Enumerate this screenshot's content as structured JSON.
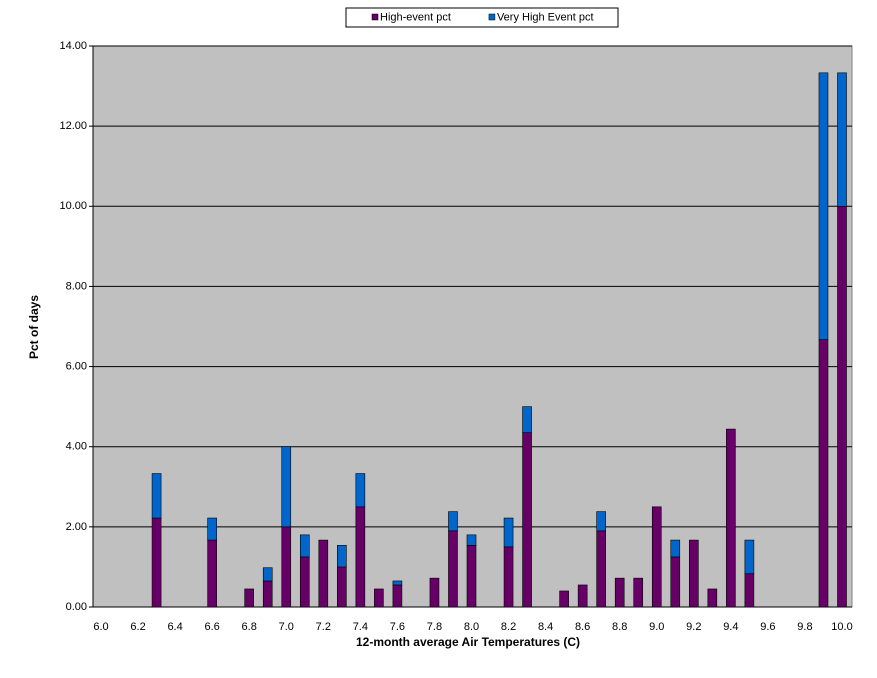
{
  "chart_data": {
    "type": "stacked_bar",
    "xlabel": "12-month average Air Temperatures (C)",
    "ylabel": "Pct of days",
    "categories": [
      "6.0",
      null,
      "6.2",
      null,
      "6.4",
      null,
      "6.6",
      null,
      "6.8",
      null,
      "7.0",
      null,
      "7.2",
      null,
      "7.4",
      null,
      "7.6",
      null,
      "7.8",
      null,
      "8.0",
      null,
      "8.2",
      null,
      "8.4",
      null,
      "8.6",
      null,
      "8.8",
      null,
      "9.0",
      null,
      "9.2",
      null,
      "9.4",
      null,
      "9.6",
      null,
      "9.8",
      null,
      "10.0"
    ],
    "series": [
      {
        "name": "High-event pct",
        "color": "#660066",
        "values": [
          0,
          0,
          0,
          2.22,
          0,
          0,
          1.67,
          0,
          0.45,
          0.65,
          2.0,
          1.25,
          1.67,
          1.0,
          2.5,
          0.45,
          0.55,
          0,
          0.72,
          1.9,
          1.54,
          0,
          1.5,
          4.35,
          0,
          0.4,
          0.55,
          1.9,
          0.72,
          0.72,
          2.5,
          1.25,
          1.67,
          0.45,
          4.44,
          0.83,
          0,
          0,
          0,
          6.67,
          10.0
        ]
      },
      {
        "name": "Very High Event pct",
        "color": "#0066cc",
        "values": [
          0,
          0,
          0,
          1.11,
          0,
          0,
          0.55,
          0,
          0,
          0.33,
          2.0,
          0.55,
          0,
          0.54,
          0.83,
          0,
          0.1,
          0,
          0,
          0.48,
          0.26,
          0,
          0.72,
          0.65,
          0,
          0,
          0,
          0.48,
          0,
          0,
          0,
          0.42,
          0,
          0,
          0,
          0.84,
          0,
          0,
          0,
          6.66,
          3.33
        ]
      }
    ],
    "ylim": [
      0,
      14
    ],
    "yticks": [
      {
        "value": 0,
        "label": "0.00"
      },
      {
        "value": 2,
        "label": "2.00"
      },
      {
        "value": 4,
        "label": "4.00"
      },
      {
        "value": 6,
        "label": "6.00"
      },
      {
        "value": 8,
        "label": "8.00"
      },
      {
        "value": 10,
        "label": "10.00"
      },
      {
        "value": 12,
        "label": "12.00"
      },
      {
        "value": 14,
        "label": "14.00"
      }
    ],
    "grid": true,
    "legend": "top"
  }
}
